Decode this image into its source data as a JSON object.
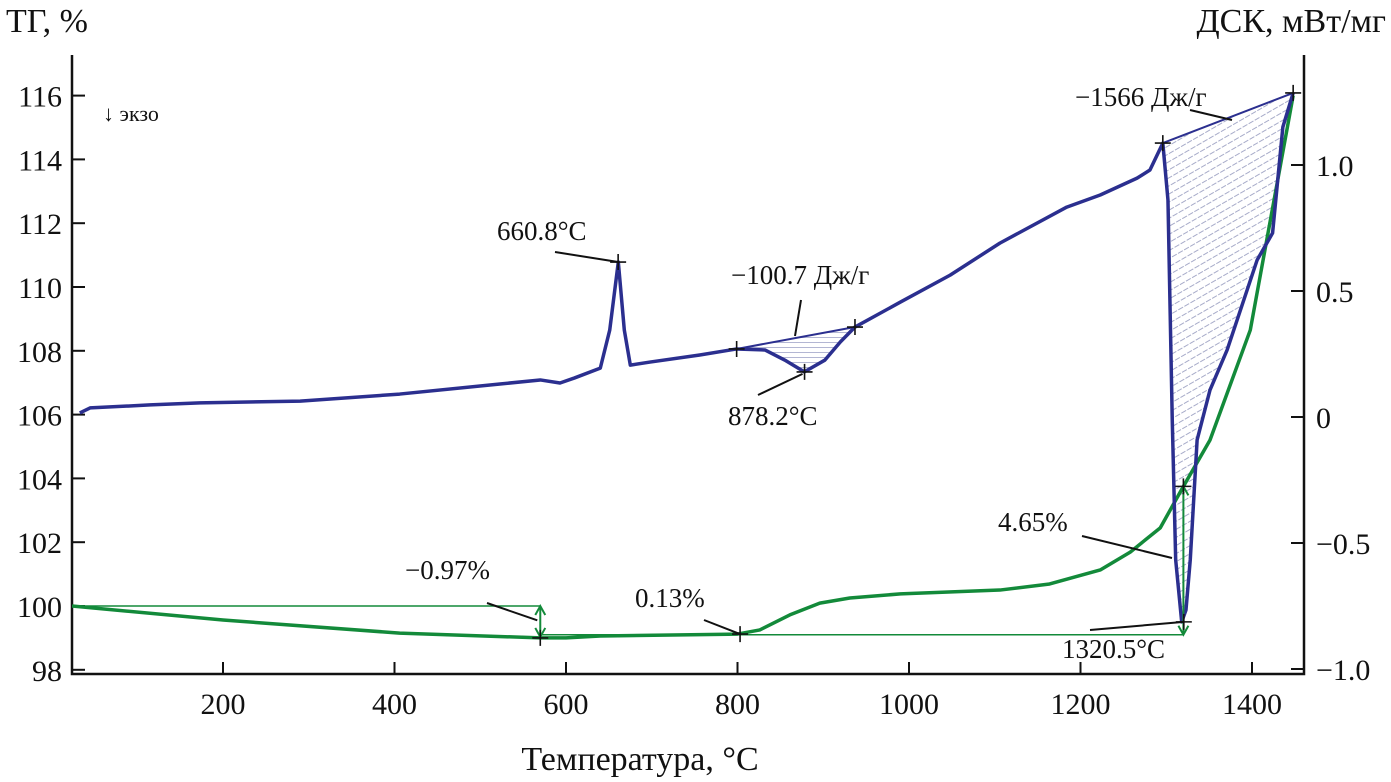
{
  "chart_data": {
    "type": "line",
    "title": "",
    "xlabel": "Температура, °C",
    "ylabel_left": "ТГ, %",
    "ylabel_right": "ДСК, мВт/мг",
    "xlim": [
      24,
      1460
    ],
    "ylim_left": [
      98,
      117.5
    ],
    "ylim_right": [
      -1.0,
      1.55
    ],
    "x_ticks": [
      200,
      400,
      600,
      800,
      1000,
      1200,
      1400
    ],
    "y_left_ticks": [
      98,
      100,
      102,
      104,
      106,
      108,
      110,
      112,
      114,
      116
    ],
    "y_right_ticks": [
      -1.0,
      -0.5,
      0,
      0.5,
      1.0
    ],
    "y_right_tick_labels": [
      "−1.0",
      "−0.5",
      "0",
      "0.5",
      "1.0"
    ],
    "grid": false,
    "exo_label": "↓ экзо",
    "colors": {
      "dsc": "#2b2f8f",
      "tg": "#138a3a",
      "annotation": "#111111"
    },
    "series": [
      {
        "axis": "right",
        "x": [
          33,
          45,
          115,
          173,
          290,
          406,
          523,
          570,
          593,
          610,
          640,
          651,
          661,
          668,
          675,
          698,
          756,
          799,
          832,
          855,
          878,
          902,
          920,
          937,
          990,
          1048,
          1106,
          1184,
          1223,
          1266,
          1281,
          1296,
          1302,
          1307,
          1311,
          1318,
          1323,
          1328,
          1336,
          1351,
          1371,
          1406,
          1424,
          1436,
          1448
        ],
        "y": [
          0.016,
          0.036,
          0.048,
          0.056,
          0.063,
          0.091,
          0.131,
          0.147,
          0.135,
          0.155,
          0.194,
          0.345,
          0.615,
          0.345,
          0.206,
          0.218,
          0.246,
          0.27,
          0.266,
          0.226,
          0.179,
          0.226,
          0.298,
          0.357,
          0.456,
          0.563,
          0.69,
          0.833,
          0.881,
          0.948,
          0.98,
          1.087,
          0.861,
          -0.012,
          -0.567,
          -0.813,
          -0.766,
          -0.567,
          -0.091,
          0.107,
          0.266,
          0.623,
          0.73,
          1.151,
          1.286
        ]
      },
      {
        "axis": "left",
        "x": [
          24,
          200,
          406,
          570,
          600,
          640,
          800,
          826,
          861,
          896,
          931,
          990,
          1106,
          1164,
          1223,
          1258,
          1293,
          1320,
          1351,
          1398,
          1448
        ],
        "y": [
          100.0,
          99.56,
          99.15,
          99.0,
          99.0,
          99.06,
          99.12,
          99.25,
          99.72,
          100.09,
          100.25,
          100.38,
          100.5,
          100.69,
          101.13,
          101.69,
          102.45,
          103.75,
          105.2,
          108.65,
          116.0
        ]
      }
    ],
    "annotations": {
      "dsc_peak": {
        "label": "660.8°C",
        "x": 660.8,
        "y": 0.615
      },
      "dsc_min": {
        "label": "878.2°C",
        "x": 878.2,
        "y": 0.179
      },
      "dsc_min2": {
        "label": "1320.5°C",
        "x": 1320.5,
        "y": -0.813
      },
      "area1": {
        "label": "−100.7 Дж/г",
        "x1": 799,
        "y1": 0.27,
        "x2": 937,
        "y2": 0.357
      },
      "area2": {
        "label": "−1566 Дж/г",
        "x1": 1296,
        "y1": 1.087,
        "x2": 1448,
        "y2": 1.286
      },
      "tg_step1": {
        "label": "−0.97%",
        "x": 570,
        "from": 100.0,
        "to": 99.03
      },
      "tg_step2": {
        "label": "0.13%",
        "x": 803,
        "y": 99.12
      },
      "tg_step3": {
        "label": "4.65%",
        "x": 1320,
        "from": 99.1,
        "to": 103.75
      }
    }
  }
}
